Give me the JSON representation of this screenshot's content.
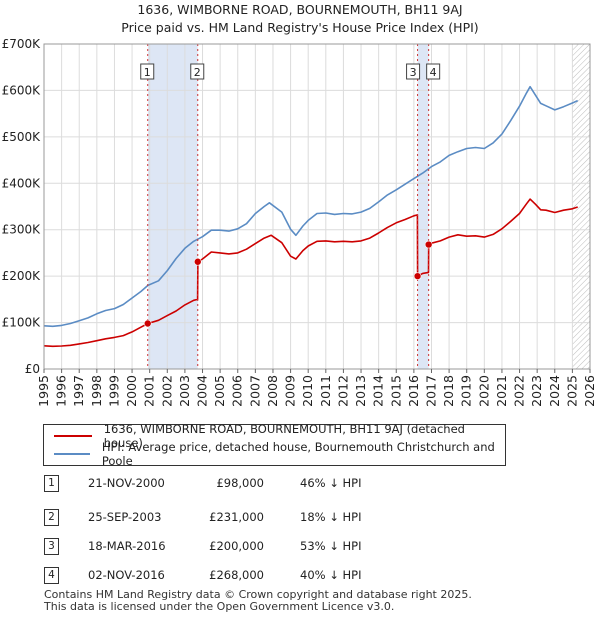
{
  "title_line1": "1636, WIMBORNE ROAD, BOURNEMOUTH, BH11 9AJ",
  "title_line2": "Price paid vs. HM Land Registry's House Price Index (HPI)",
  "colors": {
    "property": "#cc0000",
    "hpi": "#5b8cc4",
    "shade": "#dde6f5",
    "grid": "#dcdcdc",
    "marker_line": "#cc3333"
  },
  "chart_data": {
    "type": "line",
    "title": "Price paid vs. HM Land Registry's House Price Index (HPI)",
    "xlabel": "",
    "ylabel": "",
    "xlim": [
      1995,
      2026
    ],
    "ylim": [
      0,
      700000
    ],
    "y_ticks": [
      0,
      100000,
      200000,
      300000,
      400000,
      500000,
      600000,
      700000
    ],
    "y_tick_labels": [
      "£0",
      "£100K",
      "£200K",
      "£300K",
      "£400K",
      "£500K",
      "£600K",
      "£700K"
    ],
    "x_ticks": [
      1995,
      1996,
      1997,
      1998,
      1999,
      2000,
      2001,
      2002,
      2003,
      2004,
      2005,
      2006,
      2007,
      2008,
      2009,
      2010,
      2011,
      2012,
      2013,
      2014,
      2015,
      2016,
      2017,
      2018,
      2019,
      2020,
      2021,
      2022,
      2023,
      2024,
      2025,
      2026
    ],
    "grid": true,
    "shaded_periods": [
      [
        2000.9,
        2003.73
      ],
      [
        2016.21,
        2016.84
      ]
    ],
    "future_hatch_from": 2025.0,
    "series": [
      {
        "name": "1636, WIMBORNE ROAD, BOURNEMOUTH, BH11 9AJ (detached house)",
        "color": "#cc0000",
        "points": [
          [
            1995.0,
            50000
          ],
          [
            1995.5,
            49000
          ],
          [
            1996.0,
            49500
          ],
          [
            1996.5,
            51000
          ],
          [
            1997.0,
            54000
          ],
          [
            1997.5,
            57000
          ],
          [
            1998.0,
            61000
          ],
          [
            1998.5,
            65000
          ],
          [
            1999.0,
            68000
          ],
          [
            1999.5,
            72000
          ],
          [
            2000.0,
            80000
          ],
          [
            2000.5,
            90000
          ],
          [
            2000.9,
            98000
          ],
          [
            2001.5,
            105000
          ],
          [
            2002.0,
            115000
          ],
          [
            2002.5,
            125000
          ],
          [
            2003.0,
            138000
          ],
          [
            2003.5,
            148000
          ],
          [
            2003.72,
            150000
          ],
          [
            2003.74,
            231000
          ],
          [
            2004.0,
            237000
          ],
          [
            2004.5,
            252000
          ],
          [
            2005.0,
            250000
          ],
          [
            2005.5,
            248000
          ],
          [
            2006.0,
            250000
          ],
          [
            2006.5,
            258000
          ],
          [
            2007.0,
            270000
          ],
          [
            2007.5,
            282000
          ],
          [
            2007.9,
            288000
          ],
          [
            2008.5,
            272000
          ],
          [
            2009.0,
            243000
          ],
          [
            2009.3,
            237000
          ],
          [
            2009.7,
            255000
          ],
          [
            2010.0,
            265000
          ],
          [
            2010.5,
            275000
          ],
          [
            2011.0,
            276000
          ],
          [
            2011.5,
            274000
          ],
          [
            2012.0,
            275000
          ],
          [
            2012.5,
            274000
          ],
          [
            2013.0,
            276000
          ],
          [
            2013.5,
            282000
          ],
          [
            2014.0,
            293000
          ],
          [
            2014.5,
            305000
          ],
          [
            2015.0,
            315000
          ],
          [
            2015.5,
            322000
          ],
          [
            2016.0,
            330000
          ],
          [
            2016.2,
            332000
          ],
          [
            2016.21,
            200000
          ],
          [
            2016.5,
            206000
          ],
          [
            2016.83,
            208000
          ],
          [
            2016.84,
            268000
          ],
          [
            2017.0,
            271000
          ],
          [
            2017.5,
            276000
          ],
          [
            2018.0,
            284000
          ],
          [
            2018.5,
            289000
          ],
          [
            2019.0,
            286000
          ],
          [
            2019.5,
            287000
          ],
          [
            2020.0,
            284000
          ],
          [
            2020.5,
            290000
          ],
          [
            2021.0,
            302000
          ],
          [
            2021.5,
            318000
          ],
          [
            2022.0,
            335000
          ],
          [
            2022.4,
            356000
          ],
          [
            2022.6,
            366000
          ],
          [
            2022.9,
            355000
          ],
          [
            2023.2,
            343000
          ],
          [
            2023.5,
            342000
          ],
          [
            2024.0,
            337000
          ],
          [
            2024.5,
            342000
          ],
          [
            2025.0,
            345000
          ],
          [
            2025.3,
            349000
          ]
        ]
      },
      {
        "name": "HPI: Average price, detached house, Bournemouth Christchurch and Poole",
        "color": "#5b8cc4",
        "points": [
          [
            1995.0,
            93000
          ],
          [
            1995.5,
            92000
          ],
          [
            1996.0,
            94000
          ],
          [
            1996.5,
            98000
          ],
          [
            1997.0,
            104000
          ],
          [
            1997.5,
            110000
          ],
          [
            1998.0,
            119000
          ],
          [
            1998.5,
            126000
          ],
          [
            1999.0,
            130000
          ],
          [
            1999.5,
            139000
          ],
          [
            2000.0,
            153000
          ],
          [
            2000.5,
            167000
          ],
          [
            2000.9,
            180000
          ],
          [
            2001.5,
            190000
          ],
          [
            2002.0,
            212000
          ],
          [
            2002.5,
            238000
          ],
          [
            2003.0,
            260000
          ],
          [
            2003.5,
            275000
          ],
          [
            2004.0,
            285000
          ],
          [
            2004.5,
            299000
          ],
          [
            2005.0,
            299000
          ],
          [
            2005.5,
            297000
          ],
          [
            2006.0,
            302000
          ],
          [
            2006.5,
            313000
          ],
          [
            2007.0,
            335000
          ],
          [
            2007.5,
            350000
          ],
          [
            2007.8,
            358000
          ],
          [
            2008.5,
            338000
          ],
          [
            2009.0,
            301000
          ],
          [
            2009.3,
            288000
          ],
          [
            2009.7,
            308000
          ],
          [
            2010.0,
            320000
          ],
          [
            2010.5,
            335000
          ],
          [
            2011.0,
            336000
          ],
          [
            2011.5,
            333000
          ],
          [
            2012.0,
            335000
          ],
          [
            2012.5,
            334000
          ],
          [
            2013.0,
            338000
          ],
          [
            2013.5,
            346000
          ],
          [
            2014.0,
            360000
          ],
          [
            2014.5,
            375000
          ],
          [
            2015.0,
            386000
          ],
          [
            2015.5,
            398000
          ],
          [
            2016.0,
            410000
          ],
          [
            2016.5,
            422000
          ],
          [
            2017.0,
            436000
          ],
          [
            2017.5,
            446000
          ],
          [
            2018.0,
            460000
          ],
          [
            2018.5,
            468000
          ],
          [
            2019.0,
            475000
          ],
          [
            2019.5,
            477000
          ],
          [
            2020.0,
            475000
          ],
          [
            2020.5,
            487000
          ],
          [
            2021.0,
            506000
          ],
          [
            2021.5,
            535000
          ],
          [
            2022.0,
            566000
          ],
          [
            2022.4,
            595000
          ],
          [
            2022.6,
            608000
          ],
          [
            2022.9,
            590000
          ],
          [
            2023.2,
            572000
          ],
          [
            2023.5,
            567000
          ],
          [
            2024.0,
            558000
          ],
          [
            2024.5,
            565000
          ],
          [
            2025.0,
            573000
          ],
          [
            2025.3,
            578000
          ]
        ]
      }
    ],
    "sales": [
      {
        "label": "1",
        "date": "21-NOV-2000",
        "x": 2000.89,
        "price": 98000,
        "price_label": "£98,000",
        "hpi_diff": "46% ↓ HPI"
      },
      {
        "label": "2",
        "date": "25-SEP-2003",
        "x": 2003.73,
        "price": 231000,
        "price_label": "£231,000",
        "hpi_diff": "18% ↓ HPI"
      },
      {
        "label": "3",
        "date": "18-MAR-2016",
        "x": 2016.21,
        "price": 200000,
        "price_label": "£200,000",
        "hpi_diff": "53% ↓ HPI"
      },
      {
        "label": "4",
        "date": "02-NOV-2016",
        "x": 2016.84,
        "price": 268000,
        "price_label": "£268,000",
        "hpi_diff": "40% ↓ HPI"
      }
    ]
  },
  "legend": {
    "property_label": "1636, WIMBORNE ROAD, BOURNEMOUTH, BH11 9AJ (detached house)",
    "hpi_label": "HPI: Average price, detached house, Bournemouth Christchurch and Poole"
  },
  "footer": {
    "line1": "Contains HM Land Registry data © Crown copyright and database right 2025.",
    "line2": "This data is licensed under the Open Government Licence v3.0."
  }
}
